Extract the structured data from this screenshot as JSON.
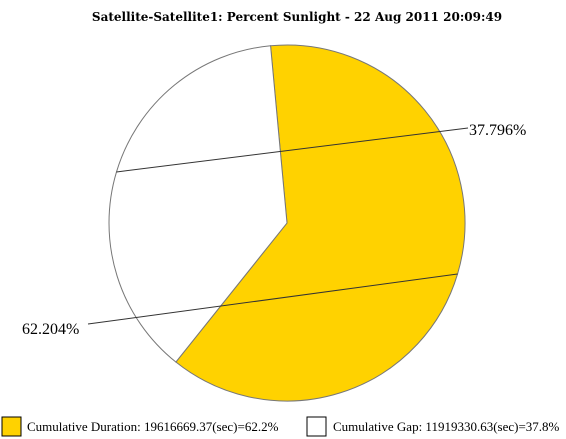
{
  "chart_data": {
    "type": "pie",
    "title": "Satellite-Satellite1: Percent Sunlight - 22 Aug 2011 20:09:49",
    "slices": [
      {
        "value": 62.204,
        "label": "62.204%",
        "color": "#FFD200",
        "legend": "Cumulative Duration: 19616669.37(sec)=62.2%"
      },
      {
        "value": 37.796,
        "label": "37.796%",
        "color": "#FFFFFF",
        "legend": "Cumulative Gap: 11919330.63(sec)=37.8%"
      }
    ],
    "legend_position": "bottom"
  }
}
